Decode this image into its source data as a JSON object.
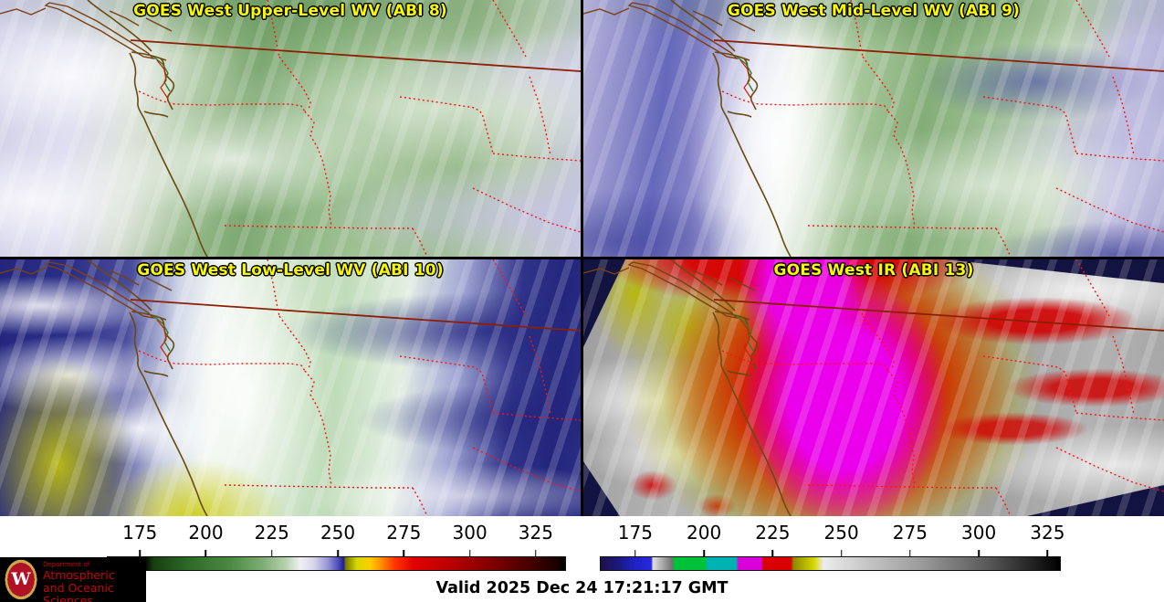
{
  "panels": [
    {
      "id": "abi8",
      "title": "GOES West Upper-Level WV (ABI 8)"
    },
    {
      "id": "abi9",
      "title": "GOES West Mid-Level WV (ABI 9)"
    },
    {
      "id": "abi10",
      "title": "GOES West Low-Level WV (ABI 10)"
    },
    {
      "id": "abi13",
      "title": "GOES West IR (ABI 13)"
    }
  ],
  "colorbars": {
    "wv": {
      "ticks": [
        "175",
        "200",
        "225",
        "250",
        "275",
        "300",
        "325"
      ],
      "stops": [
        {
          "c": "#000000",
          "p": 0
        },
        {
          "c": "#000000",
          "p": 8
        },
        {
          "c": "#16400f",
          "p": 10
        },
        {
          "c": "#2f6b28",
          "p": 18
        },
        {
          "c": "#4c8a43",
          "p": 27
        },
        {
          "c": "#7fae75",
          "p": 34
        },
        {
          "c": "#b7d2ae",
          "p": 39
        },
        {
          "c": "#f0f0f2",
          "p": 42
        },
        {
          "c": "#d8d6ec",
          "p": 45
        },
        {
          "c": "#9a98d6",
          "p": 48
        },
        {
          "c": "#4a4ab8",
          "p": 50.5
        },
        {
          "c": "#1e1e96",
          "p": 51.6
        },
        {
          "c": "#787800",
          "p": 52
        },
        {
          "c": "#d8d800",
          "p": 54.5
        },
        {
          "c": "#ffcc00",
          "p": 57.5
        },
        {
          "c": "#ff8800",
          "p": 60
        },
        {
          "c": "#ff3000",
          "p": 63
        },
        {
          "c": "#e00000",
          "p": 67
        },
        {
          "c": "#c00000",
          "p": 74
        },
        {
          "c": "#8c0000",
          "p": 82
        },
        {
          "c": "#500000",
          "p": 91
        },
        {
          "c": "#1c0000",
          "p": 98
        },
        {
          "c": "#000000",
          "p": 100
        }
      ]
    },
    "ir": {
      "ticks": [
        "175",
        "200",
        "225",
        "250",
        "275",
        "300",
        "325"
      ],
      "stops": [
        {
          "c": "#201048",
          "p": 0
        },
        {
          "c": "#1a1a80",
          "p": 4
        },
        {
          "c": "#2020c0",
          "p": 7
        },
        {
          "c": "#2828e0",
          "p": 11
        },
        {
          "c": "#e0e0e0",
          "p": 11.4
        },
        {
          "c": "#707070",
          "p": 15.6
        },
        {
          "c": "#00c23a",
          "p": 16
        },
        {
          "c": "#00c23a",
          "p": 22.8
        },
        {
          "c": "#00b2b2",
          "p": 23.2
        },
        {
          "c": "#00b2b2",
          "p": 29.5
        },
        {
          "c": "#da00da",
          "p": 30
        },
        {
          "c": "#da00da",
          "p": 35
        },
        {
          "c": "#d80000",
          "p": 35.4
        },
        {
          "c": "#d80000",
          "p": 41.4
        },
        {
          "c": "#8a8a00",
          "p": 42
        },
        {
          "c": "#d8d800",
          "p": 46.5
        },
        {
          "c": "#ececec",
          "p": 48.5
        },
        {
          "c": "#c6c6c6",
          "p": 58
        },
        {
          "c": "#9a9a9a",
          "p": 70
        },
        {
          "c": "#5a5a5a",
          "p": 84
        },
        {
          "c": "#000000",
          "p": 100
        }
      ]
    }
  },
  "footer": {
    "valid_label": "Valid 2025 Dec 24 17:21:17 GMT"
  },
  "logo": {
    "w_letter": "W",
    "dept": "Department of",
    "line1": "Atmospheric",
    "line2": "and Oceanic Sciences"
  },
  "colors": {
    "title_yellow": "#f8f800",
    "coastline": "#6b4a10",
    "border_solid": "#8b1f00",
    "border_dotted": "#ff1111",
    "uw_red": "#c5050c",
    "footer_bg": "#ffffff",
    "frame_black": "#000000"
  }
}
